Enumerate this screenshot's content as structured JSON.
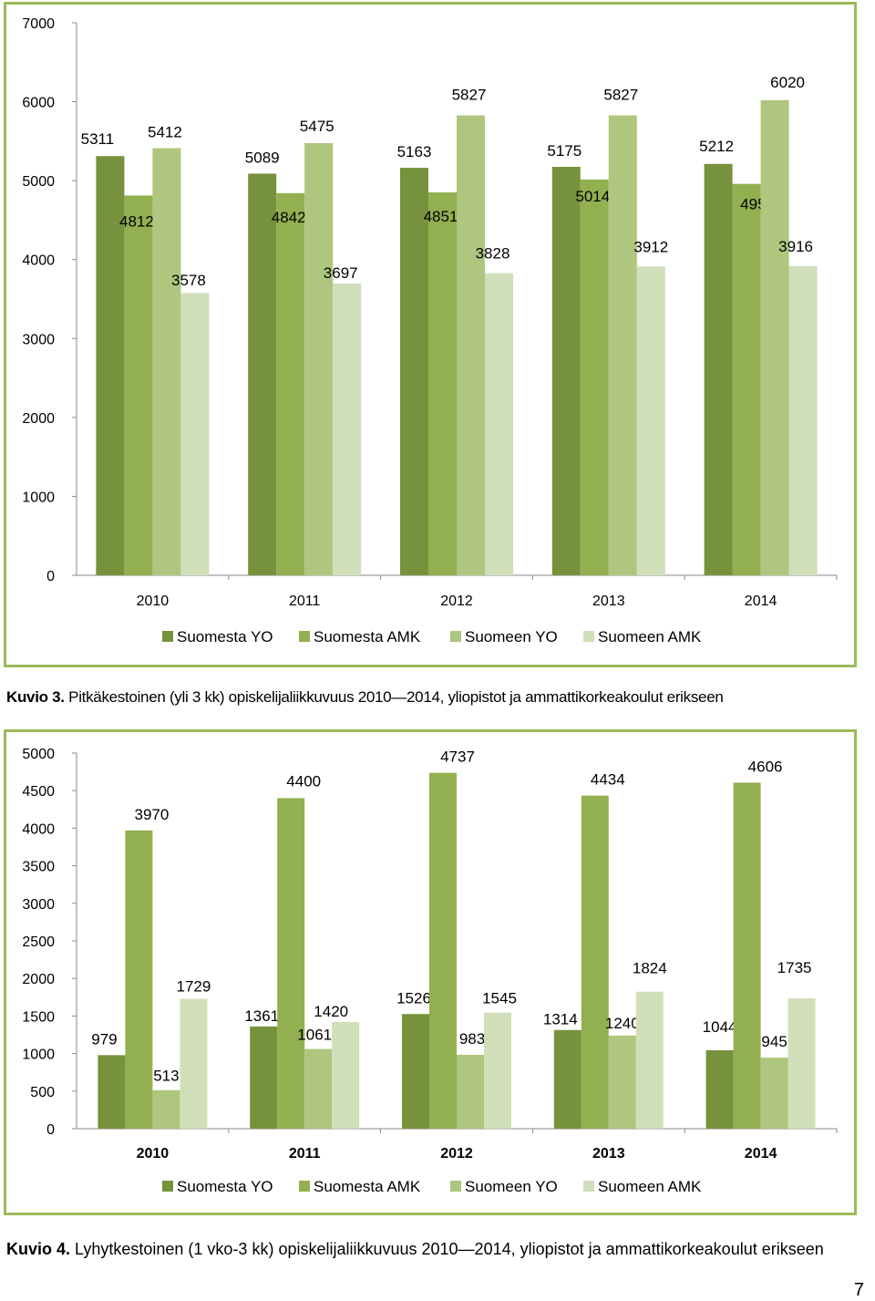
{
  "series_colors": [
    "#76923c",
    "#92b050",
    "#aec67e",
    "#d0dfba"
  ],
  "chart_data": [
    {
      "type": "bar",
      "categories": [
        "2010",
        "2011",
        "2012",
        "2013",
        "2014"
      ],
      "series": [
        {
          "name": "Suomesta YO",
          "values": [
            5311,
            5089,
            5163,
            5175,
            5212
          ]
        },
        {
          "name": "Suomesta AMK",
          "values": [
            4812,
            4842,
            4851,
            5014,
            4959
          ]
        },
        {
          "name": "Suomeen YO",
          "values": [
            5412,
            5475,
            5827,
            5827,
            6020
          ]
        },
        {
          "name": "Suomeen AMK",
          "values": [
            3578,
            3697,
            3828,
            3912,
            3916
          ]
        }
      ],
      "ylim": [
        0,
        7000
      ],
      "yticks": [
        0,
        1000,
        2000,
        3000,
        4000,
        5000,
        6000,
        7000
      ],
      "grid": false,
      "legend": "bottom"
    },
    {
      "type": "bar",
      "categories": [
        "2010",
        "2011",
        "2012",
        "2013",
        "2014"
      ],
      "series": [
        {
          "name": "Suomesta YO",
          "values": [
            979,
            1361,
            1526,
            1314,
            1044
          ]
        },
        {
          "name": "Suomesta AMK",
          "values": [
            3970,
            4400,
            4737,
            4434,
            4606
          ]
        },
        {
          "name": "Suomeen YO",
          "values": [
            513,
            1061,
            983,
            1240,
            945
          ]
        },
        {
          "name": "Suomeen AMK",
          "values": [
            1729,
            1420,
            1545,
            1824,
            1735
          ]
        }
      ],
      "ylim": [
        0,
        5000
      ],
      "yticks": [
        0,
        500,
        1000,
        1500,
        2000,
        2500,
        3000,
        3500,
        4000,
        4500,
        5000
      ],
      "grid": false,
      "legend": "bottom"
    }
  ],
  "captions": [
    {
      "label": "Kuvio 3.",
      "text": " Pitkäkestoinen (yli 3 kk) opiskelijaliikkuvuus 2010—2014, yliopistot ja ammattikorkeakoulut erikseen"
    },
    {
      "label": "Kuvio 4.",
      "text": " Lyhytkestoinen (1 vko-3 kk) opiskelijaliikkuvuus 2010—2014, yliopistot ja ammattikorkeakoulut erikseen"
    }
  ],
  "page_number": "7"
}
